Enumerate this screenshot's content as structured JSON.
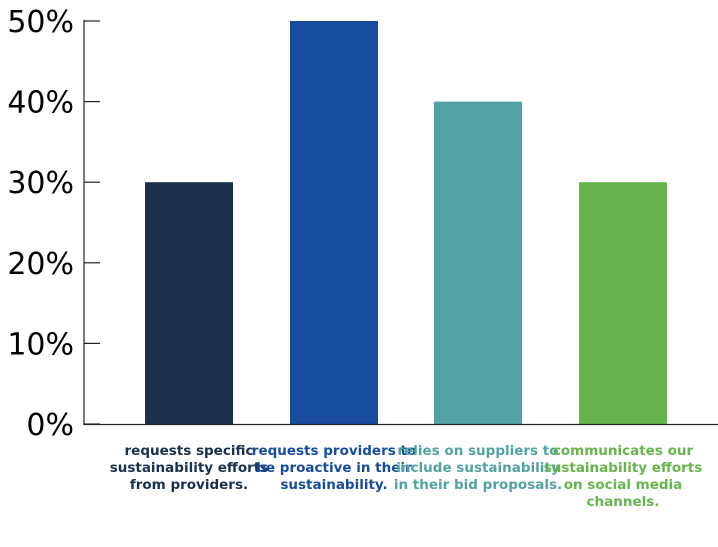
{
  "chart_data": {
    "type": "bar",
    "title": "",
    "xlabel": "",
    "ylabel": "",
    "ylim": [
      0,
      50
    ],
    "yticks": [
      0,
      10,
      20,
      30,
      40,
      50
    ],
    "ytick_labels": [
      "0%",
      "10%",
      "20%",
      "30%",
      "40%",
      "50%"
    ],
    "categories": [
      "requests specific sustainability efforts from providers.",
      "requests providers to be proactive in their sustainability.",
      "relies on suppliers to include sustainability in their bid proposals.",
      "communicates our sustainability efforts on social media channels."
    ],
    "values": [
      30,
      50,
      40,
      30
    ],
    "colors": [
      "#1a304f",
      "#174c9e",
      "#52a2a5",
      "#66b44b"
    ],
    "grid": false,
    "legend": "none"
  }
}
